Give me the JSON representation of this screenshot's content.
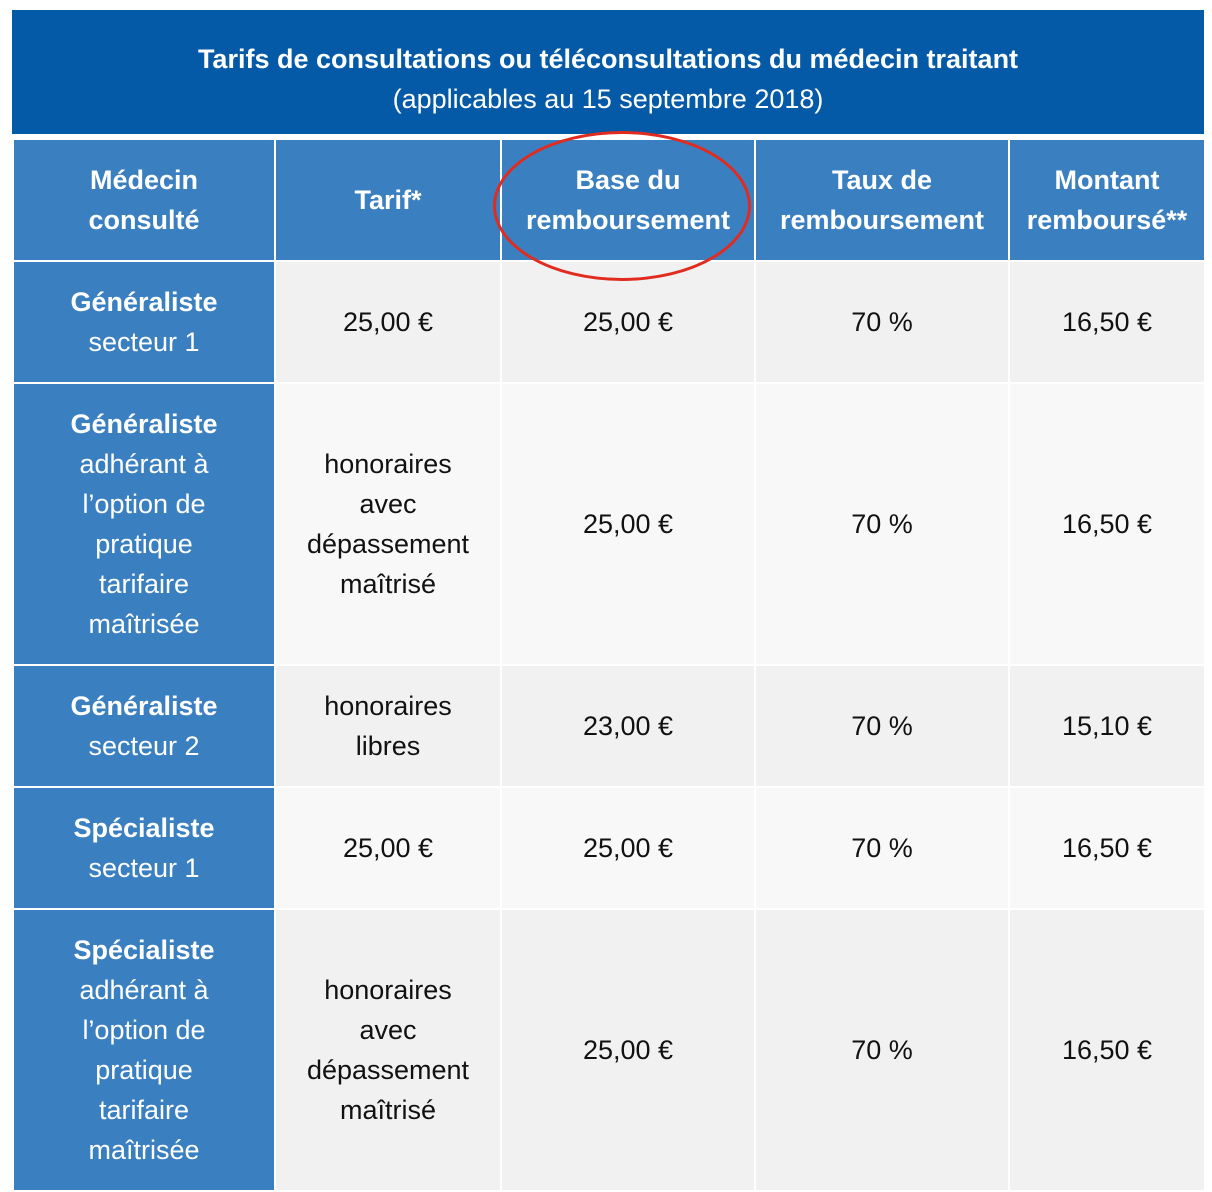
{
  "title": {
    "line1": "Tarifs de consultations ou téléconsultations du médecin traitant",
    "line2": "(applicables au 15 septembre 2018)"
  },
  "headers": [
    [
      "Médecin",
      "consulté"
    ],
    [
      "Tarif*"
    ],
    [
      "Base du",
      "remboursement"
    ],
    [
      "Taux de",
      "remboursement"
    ],
    [
      "Montant",
      "remboursé**"
    ]
  ],
  "rows": [
    {
      "head_bold": "Généraliste",
      "head_rest": [
        "secteur 1"
      ],
      "tarif": [
        "25,00 €"
      ],
      "base": "25,00 €",
      "taux": "70 %",
      "montant": "16,50 €"
    },
    {
      "head_bold": "Généraliste",
      "head_rest": [
        "adhérant à",
        "l’option de",
        "pratique",
        "tarifaire",
        "maîtrisée"
      ],
      "tarif": [
        "honoraires",
        "avec",
        "dépassement",
        "maîtrisé"
      ],
      "base": "25,00 €",
      "taux": "70 %",
      "montant": "16,50 €"
    },
    {
      "head_bold": "Généraliste",
      "head_rest": [
        "secteur 2"
      ],
      "tarif": [
        "honoraires",
        "libres"
      ],
      "base": "23,00 €",
      "taux": "70 %",
      "montant": "15,10 €"
    },
    {
      "head_bold": "Spécialiste",
      "head_rest": [
        "secteur 1"
      ],
      "tarif": [
        "25,00 €"
      ],
      "base": "25,00 €",
      "taux": "70 %",
      "montant": "16,50 €"
    },
    {
      "head_bold": "Spécialiste",
      "head_rest": [
        "adhérant à",
        "l’option de",
        "pratique",
        "tarifaire",
        "maîtrisée"
      ],
      "tarif": [
        "honoraires",
        "avec",
        "dépassement",
        "maîtrisé"
      ],
      "base": "25,00 €",
      "taux": "70 %",
      "montant": "16,50 €"
    }
  ],
  "highlight_color": "#e22b1f"
}
